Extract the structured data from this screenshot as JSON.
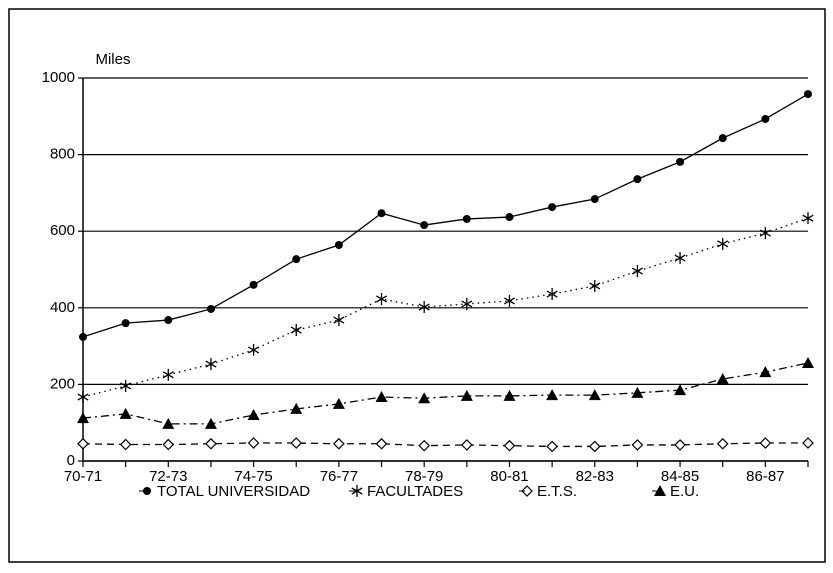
{
  "chart_data": {
    "type": "line",
    "y_label": "Miles",
    "categories": [
      "70-71",
      null,
      "72-73",
      null,
      "74-75",
      null,
      "76-77",
      null,
      "78-79",
      null,
      "80-81",
      null,
      "82-83",
      null,
      "84-85",
      null,
      "86-87",
      null
    ],
    "series": [
      {
        "name": "TOTAL UNIVERSIDAD",
        "color": "#000000",
        "marker": "circle",
        "line": "solid",
        "values": [
          324,
          360,
          368,
          397,
          460,
          527,
          564,
          647,
          616,
          632,
          637,
          663,
          684,
          736,
          781,
          843,
          893,
          958
        ]
      },
      {
        "name": "FACULTADES",
        "color": "#000000",
        "marker": "star",
        "line": "dotted",
        "values": [
          167,
          196,
          225,
          253,
          290,
          342,
          368,
          423,
          402,
          410,
          418,
          436,
          457,
          496,
          530,
          567,
          595,
          634
        ]
      },
      {
        "name": "E.T.S.",
        "color": "#000000",
        "marker": "diamond",
        "line": "dashed",
        "values": [
          45,
          43,
          43,
          45,
          47,
          47,
          45,
          45,
          40,
          42,
          40,
          38,
          38,
          42,
          42,
          45,
          47,
          47
        ]
      },
      {
        "name": "E.U.",
        "color": "#000000",
        "marker": "triangle",
        "line": "dashdot",
        "values": [
          112,
          123,
          97,
          97,
          120,
          136,
          149,
          167,
          164,
          170,
          170,
          172,
          172,
          178,
          185,
          214,
          232,
          256
        ]
      }
    ],
    "ylim": [
      0,
      1000
    ],
    "yticks": [
      0,
      200,
      400,
      600,
      800,
      1000
    ],
    "grid": true,
    "legend": "bottom"
  }
}
